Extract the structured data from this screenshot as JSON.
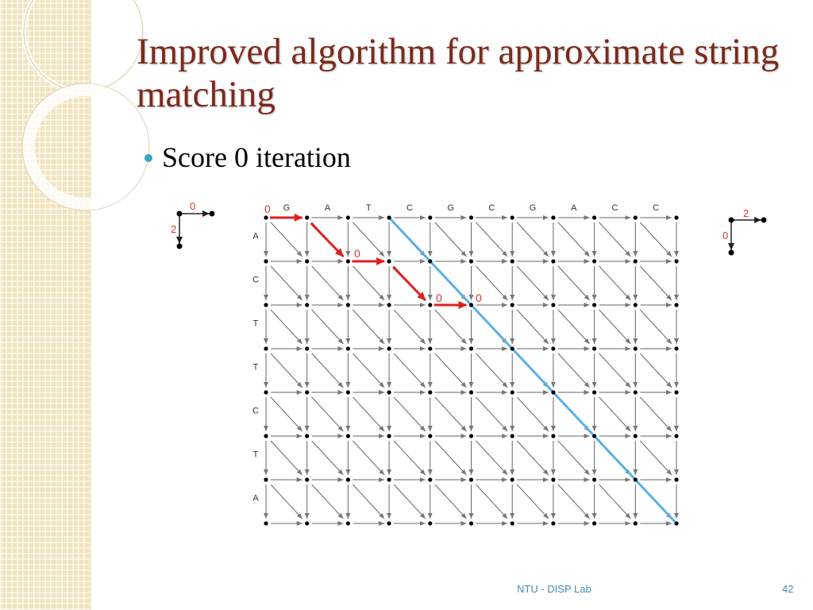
{
  "slide": {
    "title": "Improved algorithm for approximate string matching",
    "bullet": "Score 0 iteration",
    "footer": "NTU - DISP Lab",
    "page_number": "42"
  },
  "diagram": {
    "top_sequence": [
      "G",
      "A",
      "T",
      "C",
      "G",
      "C",
      "G",
      "A",
      "C",
      "C"
    ],
    "side_sequence": [
      "A",
      "C",
      "T",
      "T",
      "C",
      "T",
      "A"
    ],
    "origin_label": "0",
    "path_labels": [
      "0",
      "0",
      "0"
    ],
    "left_legend": {
      "horizontal_cost": "0",
      "vertical_cost": "2"
    },
    "right_legend": {
      "horizontal_cost": "2",
      "vertical_cost": "0"
    },
    "colors": {
      "path": "#e02020",
      "diagonal": "#5ab0e6",
      "label": "#d23a2a",
      "grid": "#555555"
    }
  }
}
